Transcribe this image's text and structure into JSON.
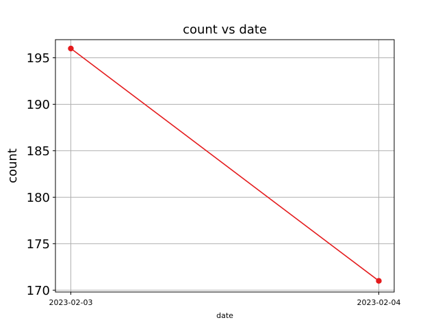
{
  "chart_data": {
    "type": "line",
    "title": "count vs date",
    "xlabel": "date",
    "ylabel": "count",
    "x": [
      "2023-02-03",
      "2023-02-04"
    ],
    "series": [
      {
        "values": [
          196,
          171
        ]
      }
    ],
    "ylim": [
      169.8,
      196.95
    ],
    "yticks": [
      170,
      175,
      180,
      185,
      190,
      195
    ],
    "xticks": [
      "2023-02-03",
      "2023-02-04"
    ],
    "grid": true,
    "legend": "none",
    "colors": {
      "line": "#e41a1c",
      "marker": "#e41a1c",
      "grid": "#b0b0b0",
      "axes": "#000000"
    }
  }
}
